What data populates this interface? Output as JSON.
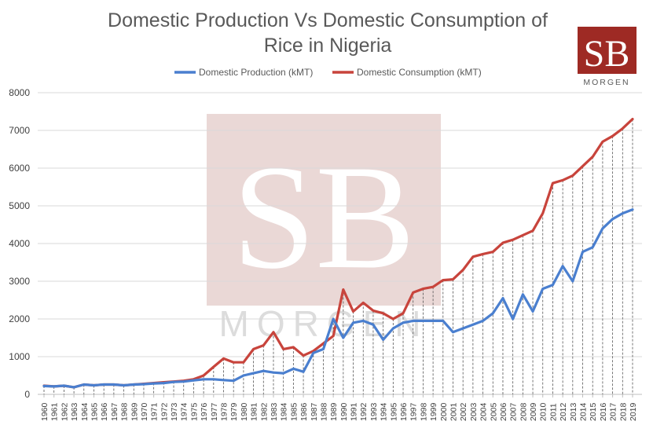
{
  "brand": {
    "logo_text": "SB",
    "logo_subtext": "MORGEN",
    "logo_color": "#9e2a24",
    "watermark_fill": "#ead8d6"
  },
  "chart_data": {
    "type": "line",
    "title": "Domestic Production Vs Domestic Consumption of Rice in Nigeria",
    "title_lines": [
      "Domestic Production Vs Domestic Consumption of",
      "Rice in Nigeria"
    ],
    "xlabel": "",
    "ylabel": "",
    "ylim": [
      0,
      8000
    ],
    "yticks": [
      0,
      1000,
      2000,
      3000,
      4000,
      5000,
      6000,
      7000,
      8000
    ],
    "grid": true,
    "legend_position": "top-center",
    "categories": [
      "1960",
      "1961",
      "1962",
      "1963",
      "1964",
      "1965",
      "1966",
      "1967",
      "1968",
      "1969",
      "1970",
      "1971",
      "1972",
      "1973",
      "1974",
      "1975",
      "1976",
      "1977",
      "1978",
      "1979",
      "1980",
      "1981",
      "1982",
      "1983",
      "1984",
      "1985",
      "1986",
      "1987",
      "1988",
      "1989",
      "1990",
      "1991",
      "1992",
      "1993",
      "1994",
      "1995",
      "1996",
      "1997",
      "1998",
      "1999",
      "2000",
      "2001",
      "2002",
      "2003",
      "2004",
      "2005",
      "2006",
      "2007",
      "2008",
      "2009",
      "2010",
      "2011",
      "2012",
      "2013",
      "2014",
      "2015",
      "2016",
      "2017",
      "2018",
      "2019"
    ],
    "series": [
      {
        "name": "Domestic Production (kMT)",
        "color": "#4a7fcf",
        "values": [
          220,
          210,
          230,
          190,
          260,
          240,
          260,
          260,
          240,
          260,
          270,
          290,
          300,
          330,
          340,
          370,
          400,
          400,
          380,
          360,
          500,
          560,
          620,
          580,
          560,
          680,
          600,
          1100,
          1200,
          2000,
          1500,
          1900,
          1950,
          1850,
          1450,
          1750,
          1900,
          1950,
          1950,
          1950,
          1950,
          1650,
          1750,
          1850,
          1950,
          2150,
          2550,
          2000,
          2650,
          2200,
          2800,
          2900,
          3400,
          3000,
          3780,
          3900,
          4400,
          4650,
          4800,
          4900
        ]
      },
      {
        "name": "Domestic Consumption (kMT)",
        "color": "#c8443c",
        "values": [
          230,
          210,
          230,
          190,
          260,
          240,
          260,
          260,
          240,
          260,
          280,
          300,
          320,
          340,
          360,
          400,
          500,
          730,
          950,
          850,
          850,
          1200,
          1300,
          1650,
          1200,
          1250,
          1030,
          1150,
          1350,
          1550,
          2780,
          2200,
          2430,
          2220,
          2150,
          2000,
          2150,
          2700,
          2800,
          2850,
          3030,
          3050,
          3300,
          3650,
          3720,
          3780,
          4020,
          4100,
          4220,
          4340,
          4800,
          5600,
          5680,
          5800,
          6050,
          6300,
          6700,
          6850,
          7050,
          7300
        ]
      }
    ]
  }
}
